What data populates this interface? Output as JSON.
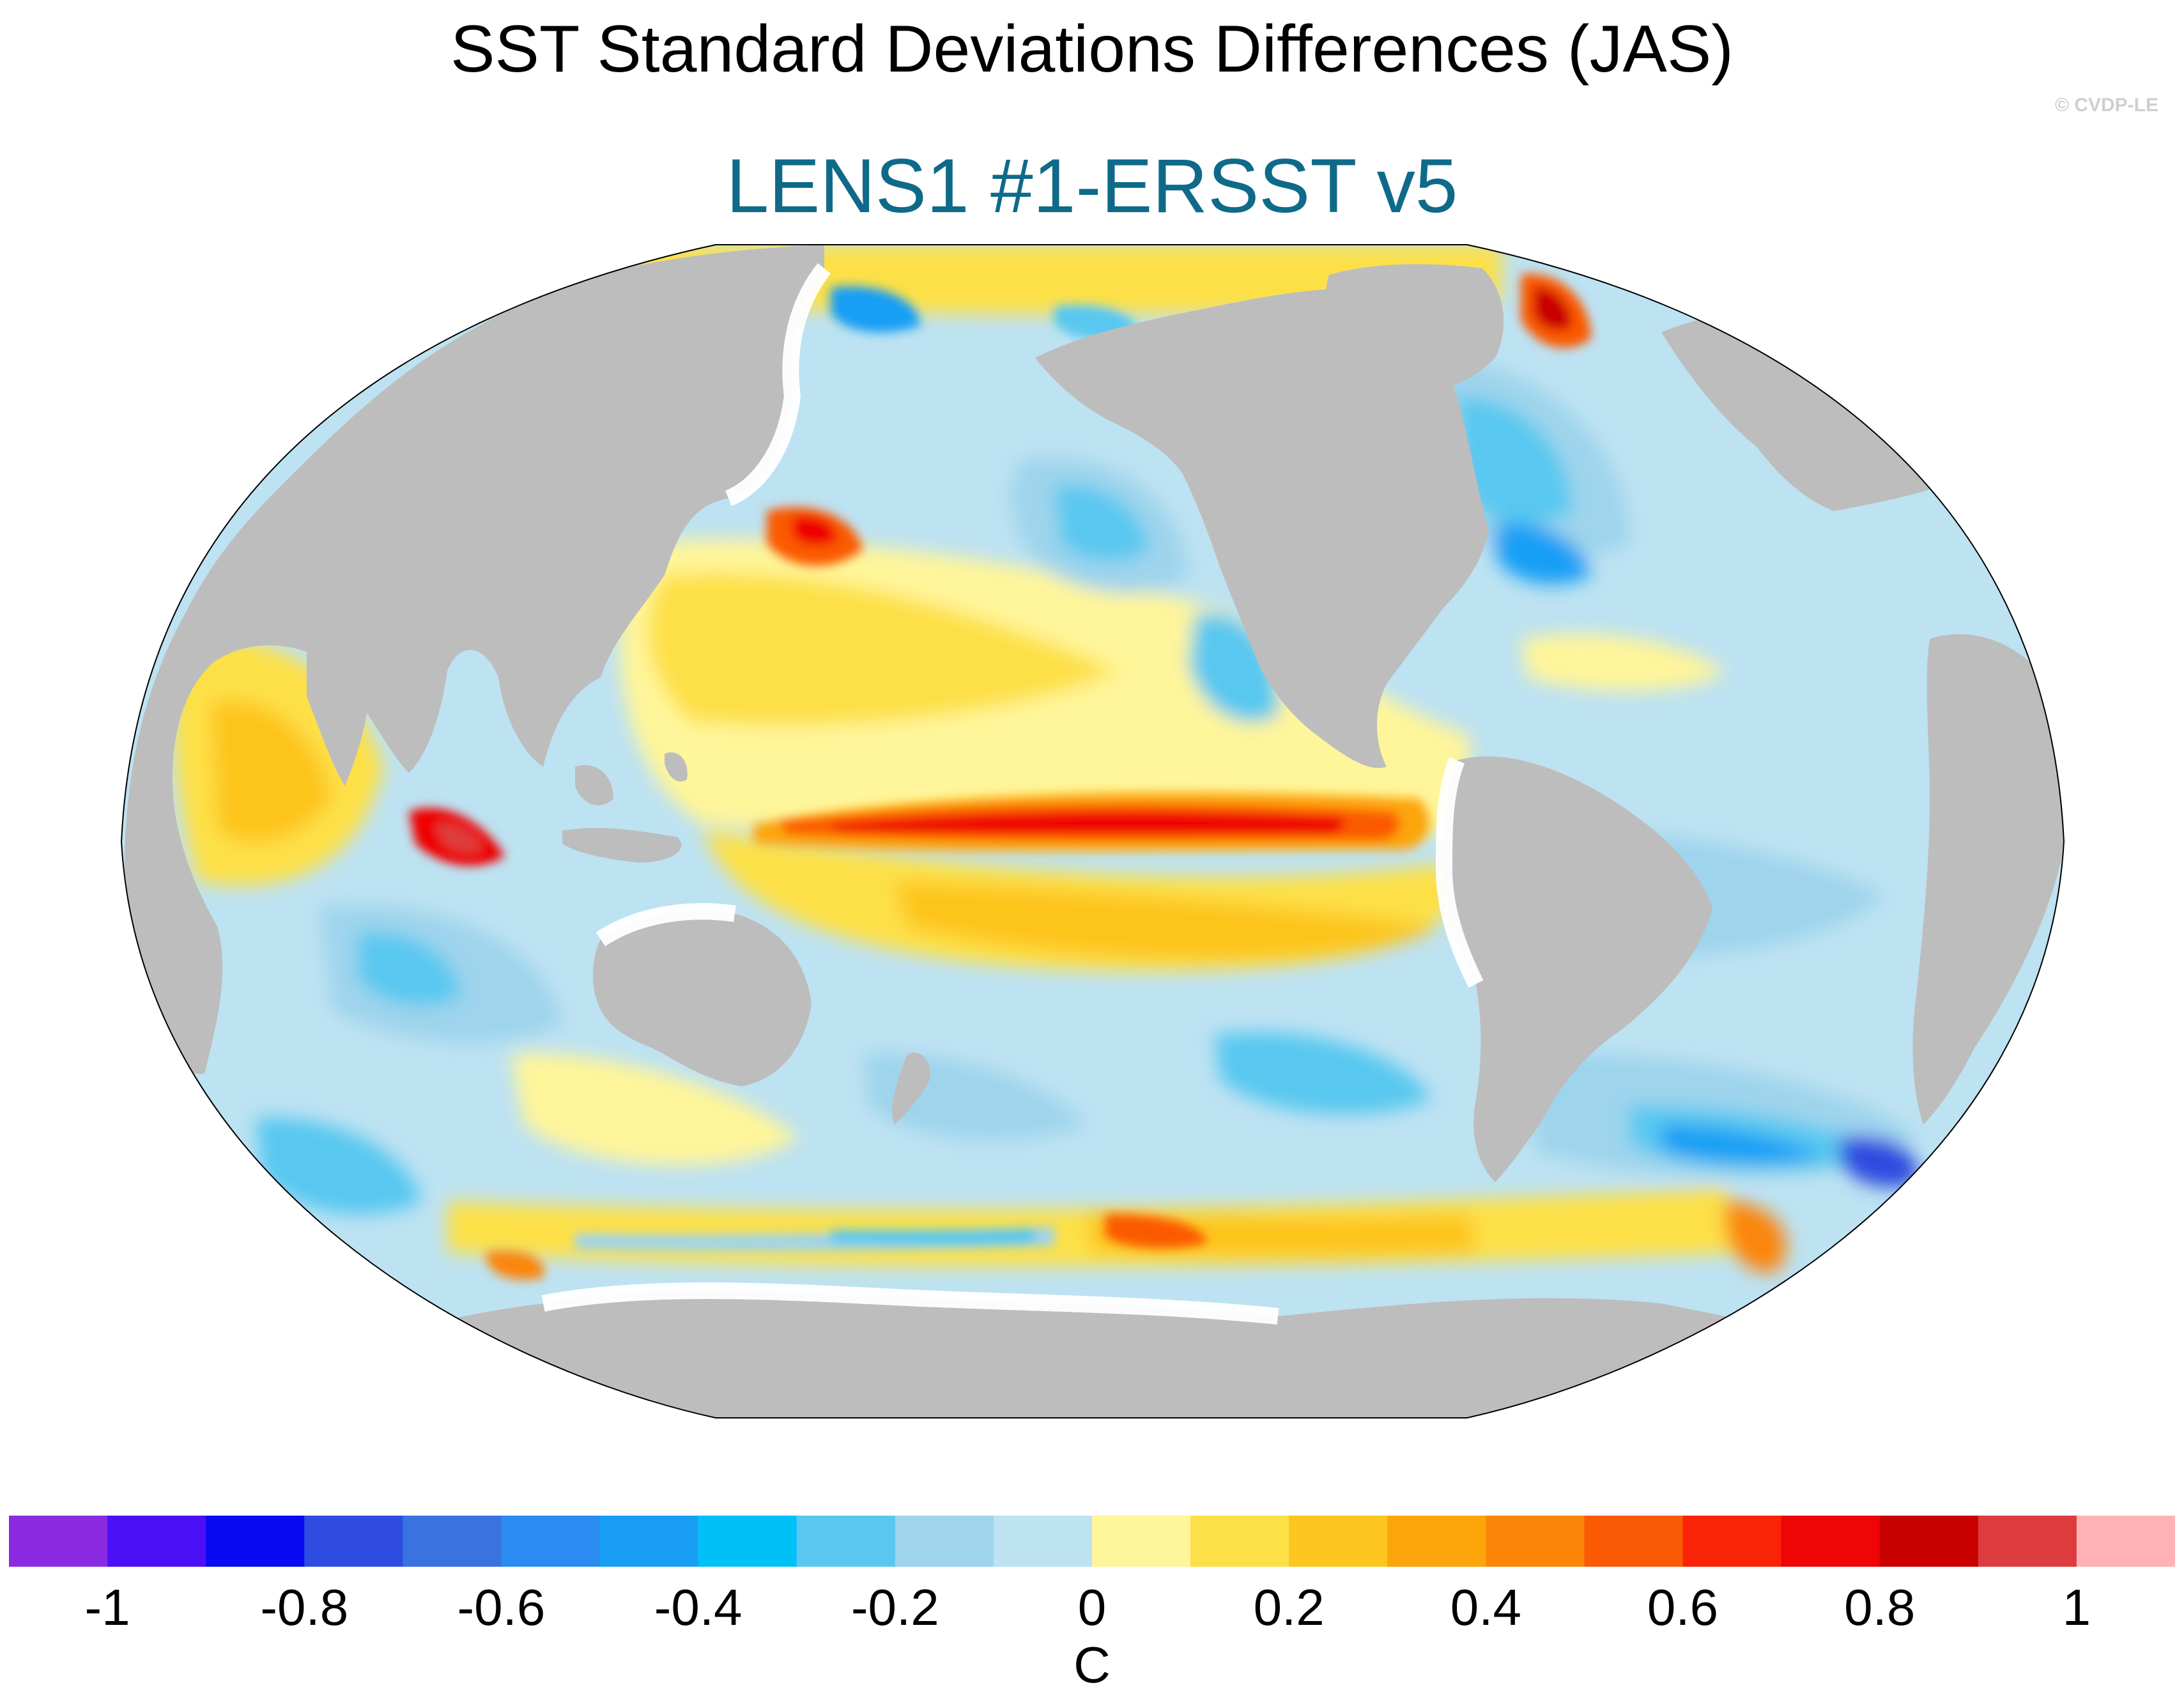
{
  "title": "SST Standard Deviations Differences (JAS)",
  "subtitle": "LENS1 #1-ERSST v5",
  "watermark": "© CVDP-LE",
  "colorbar": {
    "units": "C",
    "tick_labels": [
      "-1",
      "-0.8",
      "-0.6",
      "-0.4",
      "-0.2",
      "0",
      "0.2",
      "0.4",
      "0.6",
      "0.8",
      "1"
    ],
    "levels": [
      -1.1,
      -1.0,
      -0.9,
      -0.8,
      -0.7,
      -0.6,
      -0.5,
      -0.4,
      -0.3,
      -0.2,
      -0.1,
      0,
      0.1,
      0.2,
      0.3,
      0.4,
      0.5,
      0.6,
      0.7,
      0.8,
      0.9,
      1.0,
      1.1
    ],
    "colors": [
      "#8a2be2",
      "#4b10f5",
      "#0a0af2",
      "#2e4ce0",
      "#3a72e0",
      "#2a8cf0",
      "#189ff5",
      "#00c0f8",
      "#58c8f0",
      "#9ed4ec",
      "#bde2f2",
      "#fff59a",
      "#fde047",
      "#fdc51f",
      "#fca50a",
      "#fb8608",
      "#fb5a05",
      "#f92408",
      "#ee0505",
      "#c90000",
      "#dd3c3e",
      "#ffb2b4"
    ]
  },
  "map": {
    "projection": "robinson",
    "land_color": "#bdbdbd",
    "missing_color": "#ffffff",
    "features": [
      {
        "name": "equatorial-pacific",
        "value": 0.75
      },
      {
        "name": "north-pacific-kuroshio",
        "value": 0.9
      },
      {
        "name": "eastern-indian-ocean",
        "value": 0.9
      },
      {
        "name": "labrador-sea",
        "value": 0.7
      },
      {
        "name": "north-atlantic",
        "value": -0.4
      },
      {
        "name": "northeast-pacific",
        "value": -0.35
      },
      {
        "name": "south-atlantic",
        "value": -0.55
      },
      {
        "name": "southern-ocean-front",
        "value": 0.45
      }
    ]
  }
}
